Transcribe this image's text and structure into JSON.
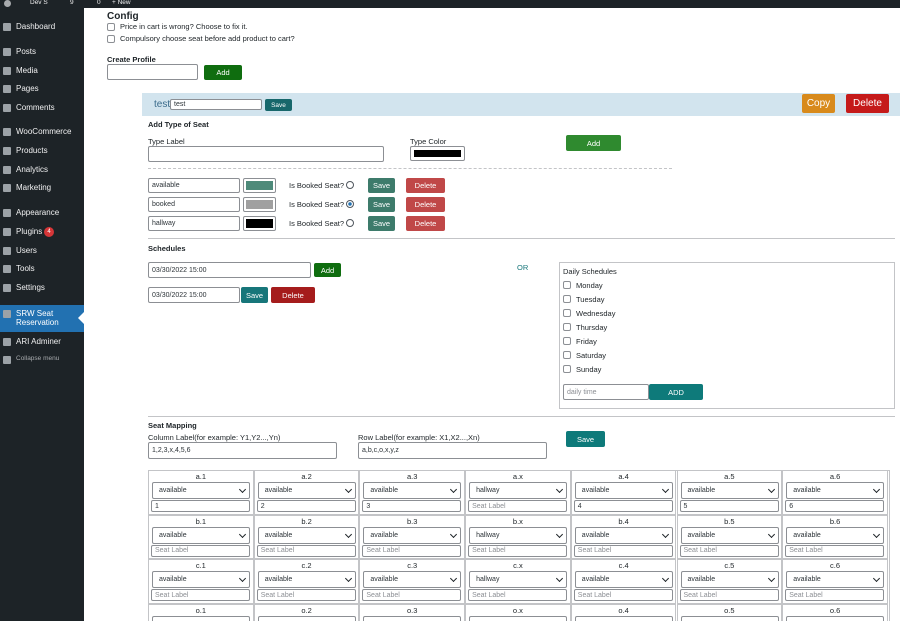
{
  "admin_bar": {
    "site": "Dev S",
    "updates": "9",
    "comments": "0",
    "new": "+ New"
  },
  "sidebar": {
    "items": [
      {
        "label": "Dashboard"
      },
      {
        "label": "Posts"
      },
      {
        "label": "Media"
      },
      {
        "label": "Pages"
      },
      {
        "label": "Comments"
      },
      {
        "label": "WooCommerce"
      },
      {
        "label": "Products"
      },
      {
        "label": "Analytics"
      },
      {
        "label": "Marketing"
      },
      {
        "label": "Appearance"
      },
      {
        "label": "Plugins",
        "badge": "4"
      },
      {
        "label": "Users"
      },
      {
        "label": "Tools"
      },
      {
        "label": "Settings"
      },
      {
        "label": "SRW Seat Reservation",
        "active": true
      },
      {
        "label": "ARI Adminer"
      },
      {
        "label": "Collapse menu"
      }
    ]
  },
  "config": {
    "title": "Config",
    "options": [
      "Price in cart is wrong? Choose to fix it.",
      "Compulsory choose seat before add product to cart?"
    ]
  },
  "create_profile": {
    "title": "Create Profile",
    "button": "Add"
  },
  "profile": {
    "name": "test",
    "input": "test",
    "save": "Save",
    "copy": "Copy",
    "delete": "Delete"
  },
  "seat_types": {
    "title": "Add Type of Seat",
    "type_label": "Type Label",
    "type_color": "Type Color",
    "add": "Add",
    "rows": [
      {
        "label": "available",
        "color": "#4e8a7a",
        "booked_label": "Is Booked Seat?",
        "booked": false,
        "save": "Save",
        "delete": "Delete"
      },
      {
        "label": "booked",
        "color": "#a0a0a0",
        "booked_label": "Is Booked Seat?",
        "booked": true,
        "save": "Save",
        "delete": "Delete"
      },
      {
        "label": "hallway",
        "color": "#000000",
        "booked_label": "Is Booked Seat?",
        "booked": false,
        "save": "Save",
        "delete": "Delete"
      }
    ]
  },
  "schedules": {
    "title": "Schedules",
    "date_input": "03/30/2022 15:00",
    "add": "Add",
    "list": [
      {
        "date": "03/30/2022 15:00",
        "save": "Save",
        "delete": "Delete"
      }
    ],
    "or": "OR",
    "daily": {
      "title": "Daily Schedules",
      "days": [
        "Monday",
        "Tuesday",
        "Wednesday",
        "Thursday",
        "Friday",
        "Saturday",
        "Sunday"
      ],
      "placeholder": "daily time",
      "add": "ADD"
    }
  },
  "seat_mapping": {
    "title": "Seat Mapping",
    "column_label": "Column Label(for example: Y1,Y2...,Yn)",
    "column_value": "1,2,3,x,4,5,6",
    "row_label": "Row Label(for example: X1,X2...,Xn)",
    "row_value": "a,b,c,o,x,y,z",
    "save": "Save",
    "rows": [
      [
        {
          "id": "a.1",
          "type": "available",
          "label": "1"
        },
        {
          "id": "a.2",
          "type": "available",
          "label": "2"
        },
        {
          "id": "a.3",
          "type": "available",
          "label": "3"
        },
        {
          "id": "a.x",
          "type": "hallway",
          "placeholder": "Seat Label"
        },
        {
          "id": "a.4",
          "type": "available",
          "label": "4"
        },
        {
          "id": "a.5",
          "type": "available",
          "label": "5"
        },
        {
          "id": "a.6",
          "type": "available",
          "label": "6"
        }
      ],
      [
        {
          "id": "b.1",
          "type": "available",
          "placeholder": "Seat Label"
        },
        {
          "id": "b.2",
          "type": "available",
          "placeholder": "Seat Label"
        },
        {
          "id": "b.3",
          "type": "available",
          "placeholder": "Seat Label"
        },
        {
          "id": "b.x",
          "type": "hallway",
          "placeholder": "Seat Label"
        },
        {
          "id": "b.4",
          "type": "available",
          "placeholder": "Seat Label"
        },
        {
          "id": "b.5",
          "type": "available",
          "placeholder": "Seat Label"
        },
        {
          "id": "b.6",
          "type": "available",
          "placeholder": "Seat Label"
        }
      ],
      [
        {
          "id": "c.1",
          "type": "available",
          "placeholder": "Seat Label"
        },
        {
          "id": "c.2",
          "type": "available",
          "placeholder": "Seat Label"
        },
        {
          "id": "c.3",
          "type": "available",
          "placeholder": "Seat Label"
        },
        {
          "id": "c.x",
          "type": "hallway",
          "placeholder": "Seat Label"
        },
        {
          "id": "c.4",
          "type": "available",
          "placeholder": "Seat Label"
        },
        {
          "id": "c.5",
          "type": "available",
          "placeholder": "Seat Label"
        },
        {
          "id": "c.6",
          "type": "available",
          "placeholder": "Seat Label"
        }
      ],
      [
        {
          "id": "o.1"
        },
        {
          "id": "o.2"
        },
        {
          "id": "o.3"
        },
        {
          "id": "o.x"
        },
        {
          "id": "o.4"
        },
        {
          "id": "o.5"
        },
        {
          "id": "o.6"
        }
      ]
    ]
  }
}
